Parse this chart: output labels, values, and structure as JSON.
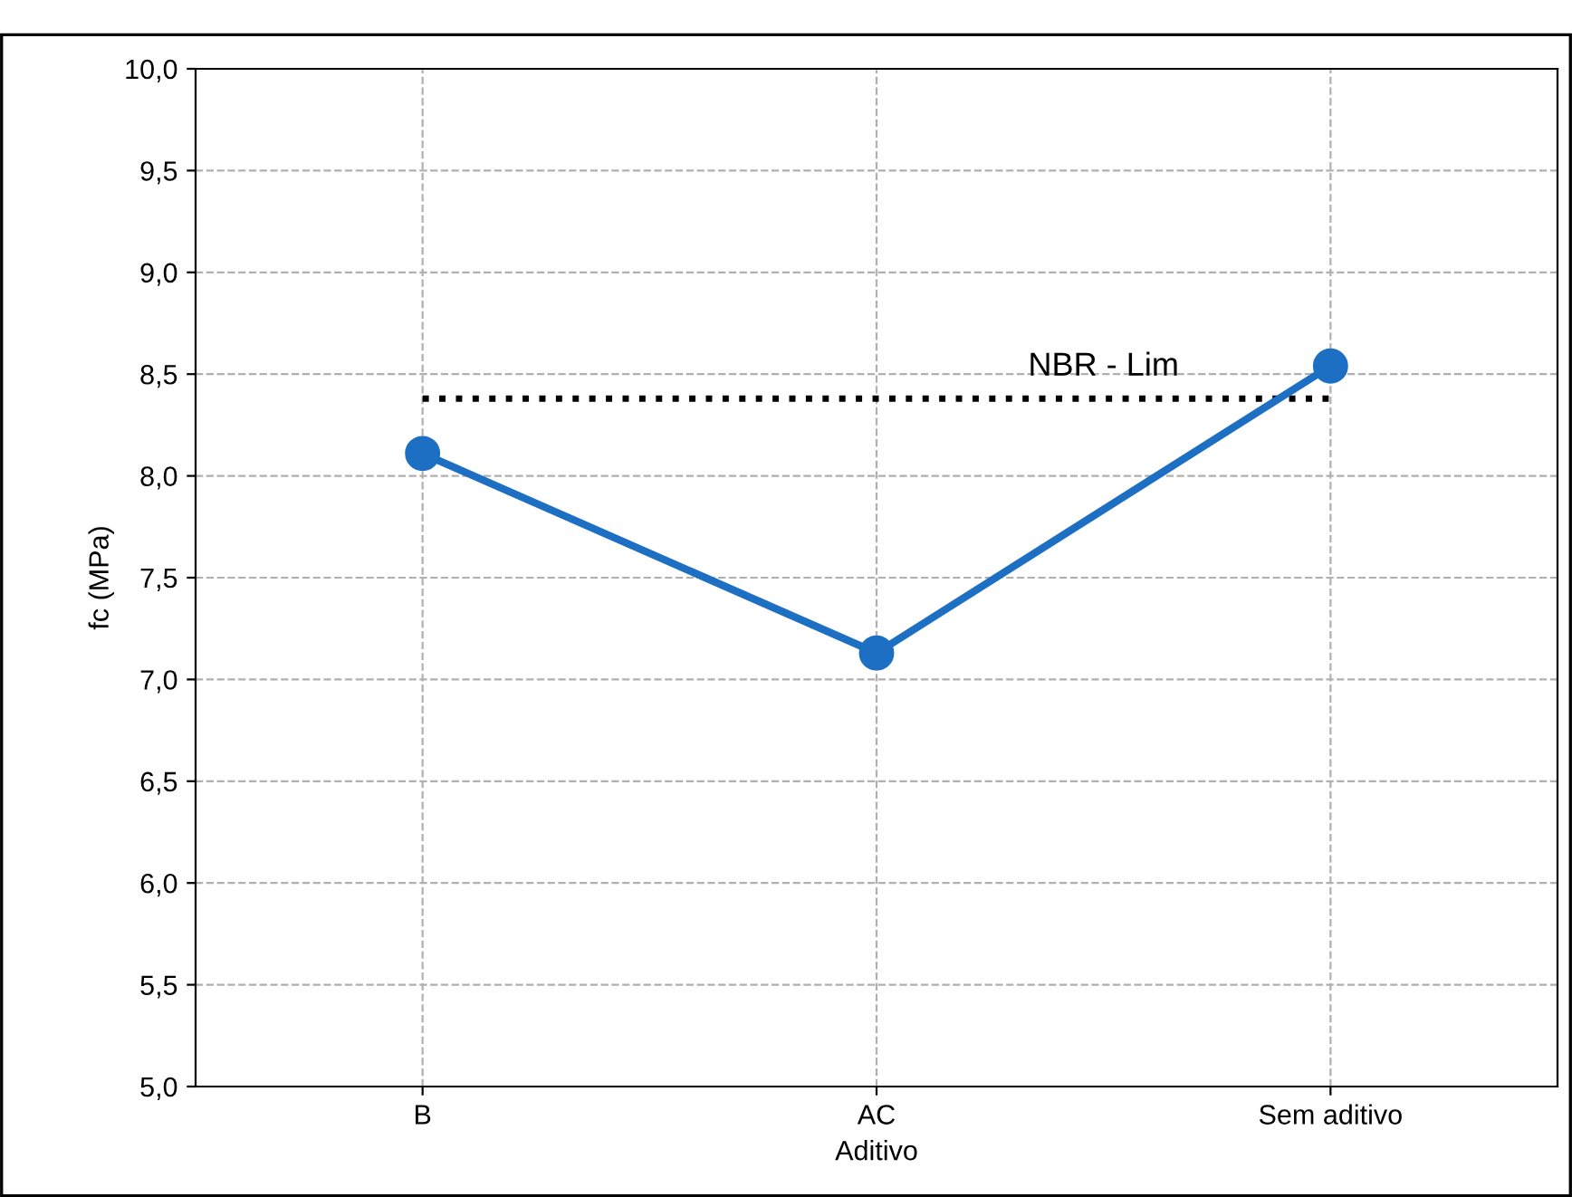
{
  "chart_data": {
    "type": "line",
    "xlabel": "Aditivo",
    "ylabel": "fc (MPa)",
    "categories": [
      "B",
      "AC",
      "Sem aditivo"
    ],
    "series": [
      {
        "color": "#1c6fc2",
        "values": [
          8.11,
          7.13,
          8.54
        ]
      }
    ],
    "ylim": [
      5,
      10
    ],
    "yticks": [
      {
        "value": 5,
        "label": "5,0"
      },
      {
        "value": 5.5,
        "label": "5,5"
      },
      {
        "value": 6,
        "label": "6,0"
      },
      {
        "value": 6.5,
        "label": "6,5"
      },
      {
        "value": 7,
        "label": "7,0"
      },
      {
        "value": 7.5,
        "label": "7,5"
      },
      {
        "value": 8,
        "label": "8,0"
      },
      {
        "value": 8.5,
        "label": "8,5"
      },
      {
        "value": 9,
        "label": "9,0"
      },
      {
        "value": 9.5,
        "label": "9,5"
      },
      {
        "value": 10,
        "label": "10,0"
      }
    ],
    "ref_lines": [
      {
        "axis": "y",
        "value": 8.38,
        "label": "NBR - Lim",
        "color": "#000000",
        "line_style": "dotted"
      }
    ],
    "grid": true,
    "marker": "circle",
    "line_style": "solid",
    "legend": false
  }
}
